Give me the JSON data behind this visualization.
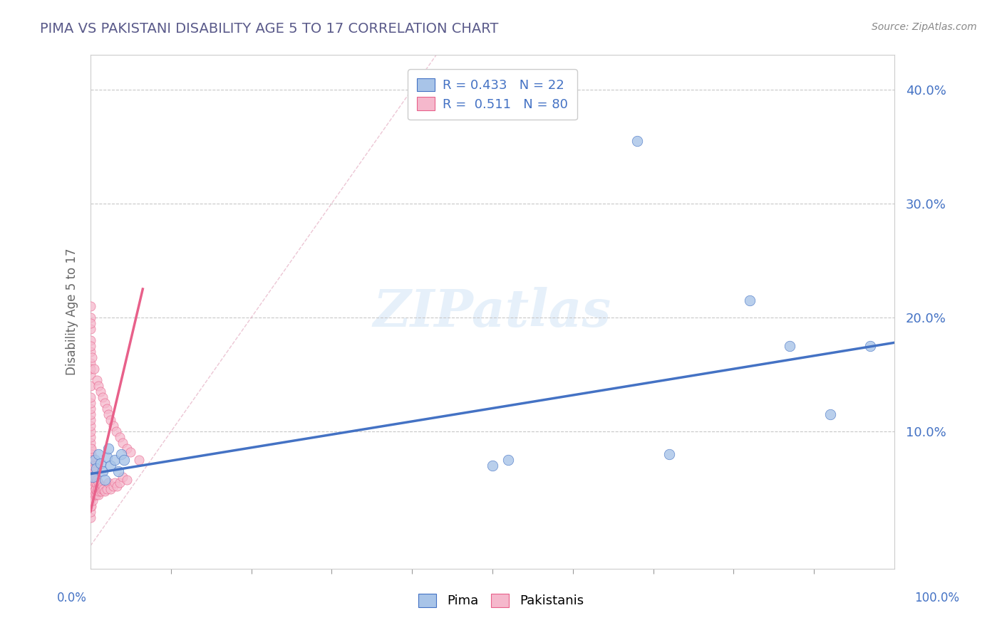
{
  "title": "PIMA VS PAKISTANI DISABILITY AGE 5 TO 17 CORRELATION CHART",
  "source": "Source: ZipAtlas.com",
  "ylabel": "Disability Age 5 to 17",
  "xlim": [
    0.0,
    1.0
  ],
  "ylim": [
    -0.02,
    0.43
  ],
  "ytick_values": [
    0.1,
    0.2,
    0.3,
    0.4
  ],
  "ytick_labels": [
    "10.0%",
    "20.0%",
    "30.0%",
    "40.0%"
  ],
  "legend_blue_r": "0.433",
  "legend_blue_n": "22",
  "legend_pink_r": "0.511",
  "legend_pink_n": "80",
  "blue_fill": "#a8c4e8",
  "pink_fill": "#f5b8cc",
  "blue_edge": "#4472c4",
  "pink_edge": "#e8608a",
  "title_color": "#5a5a8a",
  "source_color": "#888888",
  "tick_color": "#4472c4",
  "pima_x": [
    0.003,
    0.005,
    0.007,
    0.01,
    0.012,
    0.015,
    0.018,
    0.02,
    0.022,
    0.025,
    0.03,
    0.035,
    0.038,
    0.042,
    0.5,
    0.52,
    0.68,
    0.72,
    0.82,
    0.87,
    0.92,
    0.97
  ],
  "pima_y": [
    0.06,
    0.075,
    0.068,
    0.08,
    0.072,
    0.065,
    0.058,
    0.078,
    0.085,
    0.07,
    0.075,
    0.065,
    0.08,
    0.075,
    0.07,
    0.075,
    0.355,
    0.08,
    0.215,
    0.175,
    0.115,
    0.175
  ],
  "pak_x": [
    0.0,
    0.0,
    0.0,
    0.0,
    0.0,
    0.0,
    0.0,
    0.0,
    0.0,
    0.0,
    0.0,
    0.0,
    0.0,
    0.0,
    0.0,
    0.0,
    0.0,
    0.0,
    0.0,
    0.0,
    0.0,
    0.0,
    0.0,
    0.0,
    0.0,
    0.0,
    0.0,
    0.0,
    0.0,
    0.0,
    0.001,
    0.001,
    0.001,
    0.001,
    0.001,
    0.001,
    0.001,
    0.001,
    0.001,
    0.001,
    0.002,
    0.002,
    0.002,
    0.002,
    0.002,
    0.003,
    0.003,
    0.003,
    0.003,
    0.004,
    0.004,
    0.004,
    0.005,
    0.005,
    0.005,
    0.006,
    0.006,
    0.007,
    0.007,
    0.008,
    0.008,
    0.009,
    0.01,
    0.01,
    0.011,
    0.012,
    0.013,
    0.014,
    0.015,
    0.016,
    0.018,
    0.02,
    0.022,
    0.025,
    0.028,
    0.03,
    0.033,
    0.036,
    0.04,
    0.045
  ],
  "pak_y": [
    0.025,
    0.03,
    0.035,
    0.04,
    0.045,
    0.05,
    0.055,
    0.06,
    0.065,
    0.07,
    0.075,
    0.08,
    0.085,
    0.09,
    0.095,
    0.1,
    0.105,
    0.11,
    0.115,
    0.12,
    0.125,
    0.13,
    0.14,
    0.15,
    0.16,
    0.17,
    0.18,
    0.19,
    0.2,
    0.21,
    0.035,
    0.042,
    0.05,
    0.058,
    0.065,
    0.07,
    0.075,
    0.078,
    0.08,
    0.085,
    0.045,
    0.052,
    0.06,
    0.068,
    0.075,
    0.04,
    0.05,
    0.06,
    0.07,
    0.048,
    0.058,
    0.068,
    0.045,
    0.055,
    0.065,
    0.05,
    0.06,
    0.045,
    0.055,
    0.048,
    0.058,
    0.05,
    0.045,
    0.055,
    0.048,
    0.05,
    0.048,
    0.05,
    0.052,
    0.05,
    0.048,
    0.05,
    0.055,
    0.05,
    0.052,
    0.055,
    0.052,
    0.055,
    0.06,
    0.058
  ],
  "pak_extra_x": [
    0.0,
    0.0,
    0.0,
    0.002,
    0.004,
    0.008,
    0.01,
    0.012,
    0.015,
    0.018,
    0.02,
    0.022,
    0.025,
    0.028,
    0.032,
    0.036,
    0.04,
    0.045,
    0.05,
    0.06
  ],
  "pak_extra_y": [
    0.155,
    0.175,
    0.195,
    0.165,
    0.155,
    0.145,
    0.14,
    0.135,
    0.13,
    0.125,
    0.12,
    0.115,
    0.11,
    0.105,
    0.1,
    0.095,
    0.09,
    0.085,
    0.082,
    0.075
  ],
  "blue_line_x": [
    0.0,
    1.0
  ],
  "blue_line_y": [
    0.063,
    0.178
  ],
  "pink_line_x": [
    0.0,
    0.065
  ],
  "pink_line_y": [
    0.03,
    0.225
  ],
  "ref_line_x": [
    0.0,
    0.43
  ],
  "ref_line_y": [
    0.0,
    0.43
  ]
}
